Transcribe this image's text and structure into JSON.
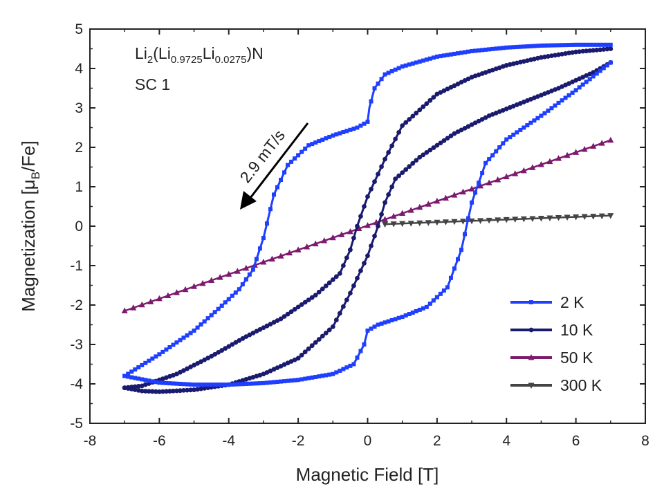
{
  "chart_data": {
    "type": "line",
    "xlabel": "Magnetic Field [T]",
    "ylabel": {
      "prefix": "Magnetization [",
      "mu": "μ",
      "sub": "B",
      "suffix": "/Fe]"
    },
    "xlim": [
      -8,
      8
    ],
    "ylim": [
      -5,
      5
    ],
    "xticks": [
      "-8",
      "-6",
      "-4",
      "-2",
      "0",
      "2",
      "4",
      "6",
      "8"
    ],
    "yticks": [
      "-5",
      "-4",
      "-3",
      "-2",
      "-1",
      "0",
      "1",
      "2",
      "3",
      "4",
      "5"
    ],
    "grid": false,
    "legend_position": "bottom-right",
    "annotations": {
      "formula": {
        "a": "Li",
        "a_sub": "2",
        "b": "(Li",
        "b_sub": "0.9725",
        "c": "Li",
        "c_sub": "0.0275",
        "d": ")N"
      },
      "sample": "SC 1",
      "sweep_rate": "2.9 mT/s"
    },
    "series": [
      {
        "name": "2 K",
        "color": "#1f3fff",
        "marker": "square",
        "descending": [
          [
            7,
            4.6
          ],
          [
            6,
            4.6
          ],
          [
            5,
            4.58
          ],
          [
            4,
            4.53
          ],
          [
            3,
            4.44
          ],
          [
            2,
            4.3
          ],
          [
            1,
            4.05
          ],
          [
            0.5,
            3.85
          ],
          [
            0.2,
            3.5
          ],
          [
            0.05,
            3.0
          ],
          [
            0,
            2.65
          ],
          [
            -0.3,
            2.5
          ],
          [
            -1,
            2.3
          ],
          [
            -1.7,
            2.05
          ],
          [
            -2.3,
            1.55
          ],
          [
            -2.7,
            0.8
          ],
          [
            -3.0,
            -0.3
          ],
          [
            -3.3,
            -1.1
          ],
          [
            -3.7,
            -1.6
          ],
          [
            -4.3,
            -2.1
          ],
          [
            -5.0,
            -2.65
          ],
          [
            -6.0,
            -3.25
          ],
          [
            -7.0,
            -3.8
          ]
        ],
        "ascending": [
          [
            -7,
            -3.8
          ],
          [
            -6,
            -3.97
          ],
          [
            -5,
            -4.02
          ],
          [
            -4,
            -4.02
          ],
          [
            -3,
            -3.98
          ],
          [
            -2,
            -3.9
          ],
          [
            -1,
            -3.75
          ],
          [
            -0.4,
            -3.5
          ],
          [
            -0.1,
            -3.0
          ],
          [
            0,
            -2.65
          ],
          [
            0.3,
            -2.5
          ],
          [
            1,
            -2.3
          ],
          [
            1.7,
            -2.05
          ],
          [
            2.3,
            -1.55
          ],
          [
            2.7,
            -0.6
          ],
          [
            3.0,
            0.6
          ],
          [
            3.4,
            1.6
          ],
          [
            4.0,
            2.2
          ],
          [
            5.0,
            2.8
          ],
          [
            6.0,
            3.45
          ],
          [
            7.0,
            4.15
          ]
        ]
      },
      {
        "name": "10 K",
        "color": "#1a1a6e",
        "marker": "circle",
        "descending": [
          [
            7,
            4.5
          ],
          [
            6,
            4.42
          ],
          [
            5,
            4.28
          ],
          [
            4,
            4.08
          ],
          [
            3,
            3.78
          ],
          [
            2,
            3.35
          ],
          [
            1,
            2.55
          ],
          [
            0.5,
            1.7
          ],
          [
            0,
            0.75
          ],
          [
            -0.3,
            0.0
          ],
          [
            -0.5,
            -0.6
          ],
          [
            -0.8,
            -1.2
          ],
          [
            -1.5,
            -1.75
          ],
          [
            -2.5,
            -2.35
          ],
          [
            -3.5,
            -2.8
          ],
          [
            -4.5,
            -3.3
          ],
          [
            -5.5,
            -3.75
          ],
          [
            -6.5,
            -4.05
          ],
          [
            -7,
            -4.1
          ]
        ],
        "ascending": [
          [
            -7,
            -4.1
          ],
          [
            -6.5,
            -4.18
          ],
          [
            -6,
            -4.2
          ],
          [
            -5,
            -4.15
          ],
          [
            -4,
            -4.02
          ],
          [
            -3,
            -3.75
          ],
          [
            -2,
            -3.35
          ],
          [
            -1,
            -2.55
          ],
          [
            -0.5,
            -1.7
          ],
          [
            0,
            -0.75
          ],
          [
            0.3,
            0.0
          ],
          [
            0.5,
            0.6
          ],
          [
            0.8,
            1.2
          ],
          [
            1.5,
            1.75
          ],
          [
            2.5,
            2.35
          ],
          [
            3.5,
            2.8
          ],
          [
            4.5,
            3.15
          ],
          [
            5.5,
            3.5
          ],
          [
            6.5,
            3.9
          ],
          [
            7,
            4.15
          ]
        ]
      },
      {
        "name": "50 K",
        "color": "#7b1a6e",
        "marker": "triangle-up",
        "points": [
          [
            -7,
            -2.15
          ],
          [
            7,
            2.18
          ]
        ]
      },
      {
        "name": "300 K",
        "color": "#444444",
        "marker": "triangle-down",
        "points": [
          [
            0.5,
            0.05
          ],
          [
            7,
            0.27
          ]
        ]
      }
    ]
  }
}
